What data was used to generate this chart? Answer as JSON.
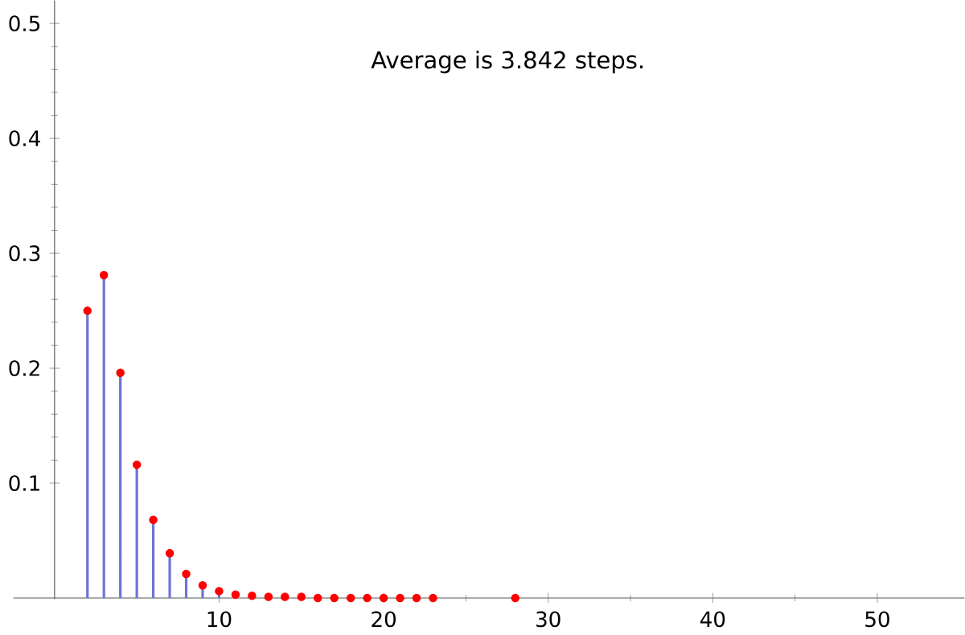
{
  "chart_data": {
    "type": "lollipop",
    "x": [
      2,
      3,
      4,
      5,
      6,
      7,
      8,
      9,
      10,
      11,
      12,
      13,
      14,
      15,
      16,
      17,
      18,
      19,
      20,
      21,
      22,
      23,
      28
    ],
    "values": [
      0.25,
      0.281,
      0.196,
      0.116,
      0.068,
      0.039,
      0.021,
      0.011,
      0.006,
      0.003,
      0.002,
      0.001,
      0.001,
      0.001,
      0,
      0,
      0,
      0,
      0,
      0,
      0,
      0,
      0
    ],
    "color": "#ff0000",
    "marker": "circle",
    "xlim": [
      -2.5,
      55.3
    ],
    "ylim": [
      -0.001,
      0.52
    ],
    "xticks": [
      10,
      20,
      30,
      40,
      50
    ],
    "yticks": [
      0.1,
      0.2,
      0.3,
      0.4,
      0.5
    ],
    "annotations": [
      "Average is 3.842 steps."
    ]
  }
}
